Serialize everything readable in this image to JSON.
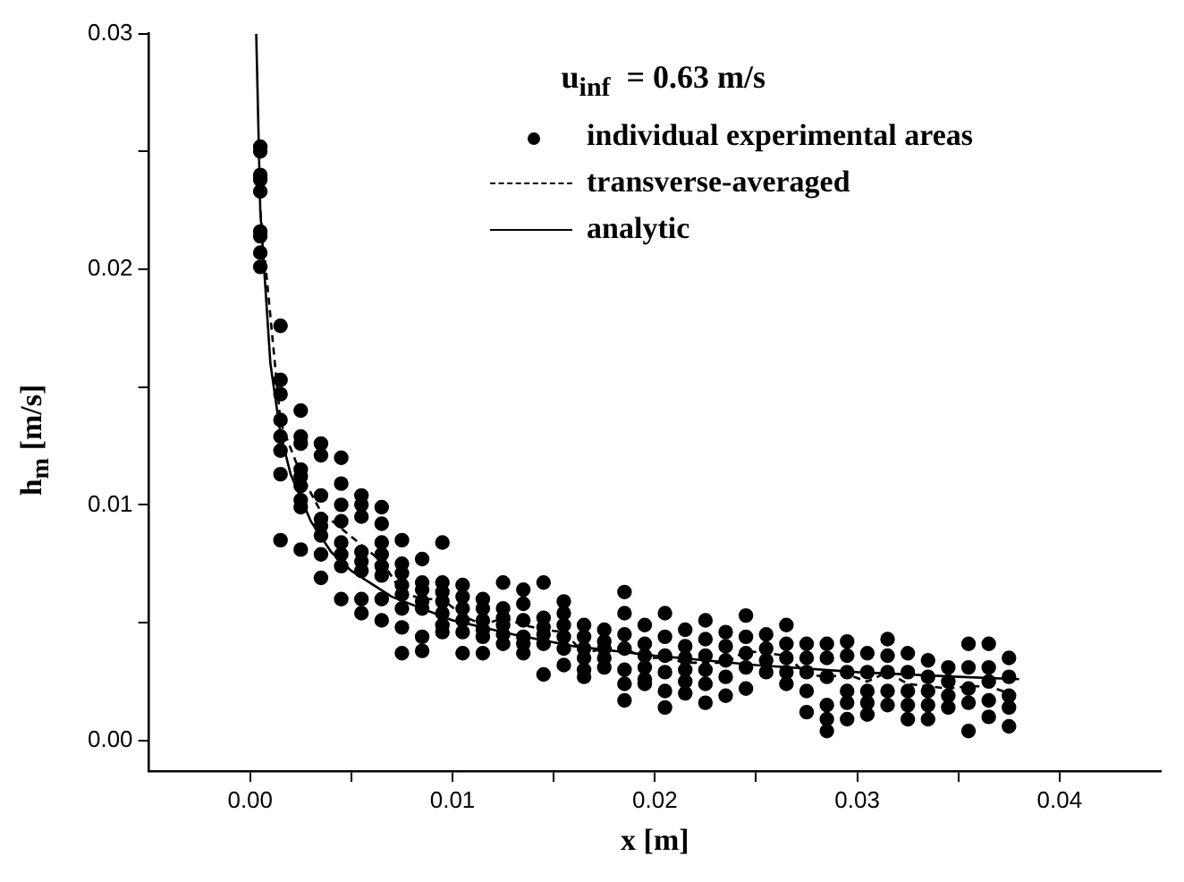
{
  "chart_data": {
    "type": "scatter",
    "xlabel": "x [m]",
    "ylabel": "h$_{m}$ [m/s]",
    "legend_title": "u$_{inf}$  = 0.63 m/s",
    "legend": "top right",
    "grid": false,
    "xlim": [
      -0.005,
      0.045
    ],
    "ylim": [
      -0.0013,
      0.03
    ],
    "xticks": [
      {
        "value": 0,
        "label": "0.00"
      },
      {
        "value": 0.005,
        "label": null
      },
      {
        "value": 0.01,
        "label": "0.01"
      },
      {
        "value": 0.015,
        "label": null
      },
      {
        "value": 0.02,
        "label": "0.02"
      },
      {
        "value": 0.025,
        "label": null
      },
      {
        "value": 0.03,
        "label": "0.03"
      },
      {
        "value": 0.035,
        "label": null
      },
      {
        "value": 0.04,
        "label": "0.04"
      }
    ],
    "yticks": [
      {
        "value": 0,
        "label": "0.00"
      },
      {
        "value": 0.005,
        "label": null
      },
      {
        "value": 0.01,
        "label": "0.01"
      },
      {
        "value": 0.015,
        "label": null
      },
      {
        "value": 0.02,
        "label": "0.02"
      },
      {
        "value": 0.025,
        "label": null
      },
      {
        "value": 0.03,
        "label": "0.03"
      }
    ],
    "series": [
      {
        "name": "individual experimental areas",
        "type": "scatter",
        "color": "#000000",
        "marker": "circle",
        "x": [
          0.0005,
          0.0005,
          0.0005,
          0.0005,
          0.0005,
          0.0005,
          0.0005,
          0.0005,
          0.0005,
          0.0015,
          0.0015,
          0.0015,
          0.0015,
          0.0015,
          0.0015,
          0.0015,
          0.0015,
          0.0025,
          0.0025,
          0.0025,
          0.0025,
          0.0025,
          0.0025,
          0.0025,
          0.0025,
          0.0025,
          0.0035,
          0.0035,
          0.0035,
          0.0035,
          0.0035,
          0.0035,
          0.0035,
          0.0035,
          0.0045,
          0.0045,
          0.0045,
          0.0045,
          0.0045,
          0.0045,
          0.0045,
          0.0045,
          0.0055,
          0.0055,
          0.0055,
          0.0055,
          0.0055,
          0.0055,
          0.0055,
          0.0055,
          0.0065,
          0.0065,
          0.0065,
          0.0065,
          0.0065,
          0.0065,
          0.0065,
          0.0065,
          0.0075,
          0.0075,
          0.0075,
          0.0075,
          0.0075,
          0.0075,
          0.0075,
          0.0075,
          0.0085,
          0.0085,
          0.0085,
          0.0085,
          0.0085,
          0.0085,
          0.0085,
          0.0095,
          0.0095,
          0.0095,
          0.0095,
          0.0095,
          0.0095,
          0.0095,
          0.0105,
          0.0105,
          0.0105,
          0.0105,
          0.0105,
          0.0105,
          0.0115,
          0.0115,
          0.0115,
          0.0115,
          0.0115,
          0.0115,
          0.0125,
          0.0125,
          0.0125,
          0.0125,
          0.0125,
          0.0125,
          0.0135,
          0.0135,
          0.0135,
          0.0135,
          0.0135,
          0.0135,
          0.0145,
          0.0145,
          0.0145,
          0.0145,
          0.0145,
          0.0145,
          0.0155,
          0.0155,
          0.0155,
          0.0155,
          0.0155,
          0.0155,
          0.0165,
          0.0165,
          0.0165,
          0.0165,
          0.0165,
          0.0165,
          0.0175,
          0.0175,
          0.0175,
          0.0175,
          0.0175,
          0.0185,
          0.0185,
          0.0185,
          0.0185,
          0.0185,
          0.0185,
          0.0185,
          0.0195,
          0.0195,
          0.0195,
          0.0195,
          0.0195,
          0.0195,
          0.0205,
          0.0205,
          0.0205,
          0.0205,
          0.0205,
          0.0205,
          0.0215,
          0.0215,
          0.0215,
          0.0215,
          0.0215,
          0.0215,
          0.0225,
          0.0225,
          0.0225,
          0.0225,
          0.0225,
          0.0225,
          0.0235,
          0.0235,
          0.0235,
          0.0235,
          0.0235,
          0.0245,
          0.0245,
          0.0245,
          0.0245,
          0.0245,
          0.0255,
          0.0255,
          0.0255,
          0.0255,
          0.0265,
          0.0265,
          0.0265,
          0.0265,
          0.0265,
          0.0275,
          0.0275,
          0.0275,
          0.0275,
          0.0275,
          0.0285,
          0.0285,
          0.0285,
          0.0285,
          0.0285,
          0.0285,
          0.0295,
          0.0295,
          0.0295,
          0.0295,
          0.0295,
          0.0295,
          0.0305,
          0.0305,
          0.0305,
          0.0305,
          0.0305,
          0.0315,
          0.0315,
          0.0315,
          0.0315,
          0.0315,
          0.0325,
          0.0325,
          0.0325,
          0.0325,
          0.0325,
          0.0335,
          0.0335,
          0.0335,
          0.0335,
          0.0335,
          0.0345,
          0.0345,
          0.0345,
          0.0345,
          0.0355,
          0.0355,
          0.0355,
          0.0355,
          0.0355,
          0.0365,
          0.0365,
          0.0365,
          0.0365,
          0.0365,
          0.0375,
          0.0375,
          0.0375,
          0.0375,
          0.0375
        ],
        "values": [
          0.0252,
          0.025,
          0.024,
          0.0238,
          0.0233,
          0.0216,
          0.0214,
          0.0207,
          0.0201,
          0.0176,
          0.0153,
          0.0147,
          0.0136,
          0.0129,
          0.0123,
          0.0113,
          0.0085,
          0.014,
          0.0129,
          0.0126,
          0.0115,
          0.0112,
          0.0108,
          0.0102,
          0.0099,
          0.0081,
          0.0126,
          0.0121,
          0.0104,
          0.0094,
          0.0091,
          0.0087,
          0.0079,
          0.0069,
          0.012,
          0.0109,
          0.01,
          0.0093,
          0.0084,
          0.0079,
          0.0074,
          0.006,
          0.0104,
          0.01,
          0.0095,
          0.008,
          0.0076,
          0.0072,
          0.006,
          0.0054,
          0.0099,
          0.0092,
          0.0084,
          0.0079,
          0.0074,
          0.007,
          0.006,
          0.0051,
          0.0085,
          0.0075,
          0.0071,
          0.0066,
          0.0062,
          0.0056,
          0.0048,
          0.0037,
          0.0077,
          0.0067,
          0.0064,
          0.0059,
          0.0056,
          0.0044,
          0.0038,
          0.0084,
          0.0067,
          0.0063,
          0.0059,
          0.0054,
          0.0049,
          0.0046,
          0.0066,
          0.0061,
          0.0056,
          0.0051,
          0.0046,
          0.0037,
          0.006,
          0.0056,
          0.0051,
          0.0047,
          0.0044,
          0.0037,
          0.0067,
          0.0056,
          0.0052,
          0.0049,
          0.0045,
          0.0041,
          0.0064,
          0.0058,
          0.0051,
          0.0044,
          0.0041,
          0.0037,
          0.0067,
          0.0052,
          0.0048,
          0.0045,
          0.0041,
          0.0028,
          0.0059,
          0.0054,
          0.0049,
          0.0044,
          0.0039,
          0.0032,
          0.0049,
          0.0044,
          0.0039,
          0.0035,
          0.003,
          0.0027,
          0.0047,
          0.0042,
          0.0039,
          0.0035,
          0.0031,
          0.0063,
          0.0054,
          0.0045,
          0.0039,
          0.003,
          0.0024,
          0.0017,
          0.0049,
          0.0041,
          0.0036,
          0.0031,
          0.0026,
          0.0024,
          0.0054,
          0.0044,
          0.0036,
          0.0029,
          0.0021,
          0.0014,
          0.0047,
          0.004,
          0.0035,
          0.003,
          0.0025,
          0.002,
          0.0051,
          0.0043,
          0.0036,
          0.003,
          0.0024,
          0.0016,
          0.0046,
          0.004,
          0.0034,
          0.0027,
          0.0019,
          0.0053,
          0.0044,
          0.0037,
          0.0031,
          0.0022,
          0.0045,
          0.0039,
          0.0034,
          0.0029,
          0.0049,
          0.0041,
          0.0035,
          0.0029,
          0.0024,
          0.0041,
          0.0035,
          0.0029,
          0.0021,
          0.0012,
          0.0041,
          0.0035,
          0.0027,
          0.0015,
          0.0009,
          0.0004,
          0.0042,
          0.0036,
          0.0029,
          0.0021,
          0.0016,
          0.0009,
          0.0037,
          0.0029,
          0.0021,
          0.0016,
          0.0011,
          0.0043,
          0.0036,
          0.0029,
          0.0021,
          0.0015,
          0.0037,
          0.0029,
          0.0021,
          0.0015,
          0.0009,
          0.0034,
          0.0027,
          0.0021,
          0.0015,
          0.0009,
          0.0031,
          0.0025,
          0.0019,
          0.0014,
          0.0041,
          0.0031,
          0.0022,
          0.0016,
          0.0004,
          0.0041,
          0.0031,
          0.0025,
          0.0017,
          0.001,
          0.0035,
          0.0027,
          0.0019,
          0.0014,
          0.0006
        ]
      },
      {
        "name": "transverse-averaged",
        "type": "line",
        "color": "#000000",
        "marker": "none",
        "line_style": "dashed",
        "x": [
          0.0005,
          0.0015,
          0.0025,
          0.0035,
          0.0045,
          0.0055,
          0.0065,
          0.0075,
          0.0085,
          0.0095,
          0.0105,
          0.0115,
          0.0125,
          0.0135,
          0.0145,
          0.0155,
          0.0165,
          0.0175,
          0.0185,
          0.0195,
          0.0205,
          0.0215,
          0.0225,
          0.0235,
          0.0245,
          0.0255,
          0.0265,
          0.0275,
          0.0285,
          0.0295,
          0.0305,
          0.0315,
          0.0325,
          0.0335,
          0.0345,
          0.0355,
          0.0365,
          0.0375
        ],
        "values": [
          0.0225,
          0.0135,
          0.0113,
          0.0097,
          0.009,
          0.0083,
          0.0076,
          0.0063,
          0.006,
          0.006,
          0.0053,
          0.0049,
          0.0052,
          0.0049,
          0.0047,
          0.0046,
          0.0037,
          0.0039,
          0.0039,
          0.0035,
          0.0035,
          0.0033,
          0.0033,
          0.0033,
          0.0038,
          0.0037,
          0.0036,
          0.0028,
          0.0027,
          0.0028,
          0.0025,
          0.0029,
          0.0024,
          0.0023,
          0.0022,
          0.0023,
          0.0023,
          0.002
        ]
      },
      {
        "name": "analytic",
        "type": "line",
        "color": "#000000",
        "marker": "none",
        "line_style": "solid",
        "x": [
          0.0003,
          0.0005,
          0.001,
          0.0015,
          0.002,
          0.003,
          0.004,
          0.005,
          0.007,
          0.01,
          0.013,
          0.016,
          0.02,
          0.025,
          0.03,
          0.035,
          0.038
        ],
        "values": [
          0.03,
          0.0225,
          0.016,
          0.013,
          0.0113,
          0.0093,
          0.008,
          0.0072,
          0.0061,
          0.0051,
          0.0045,
          0.004,
          0.0036,
          0.0032,
          0.0029,
          0.0027,
          0.0026
        ]
      }
    ]
  }
}
